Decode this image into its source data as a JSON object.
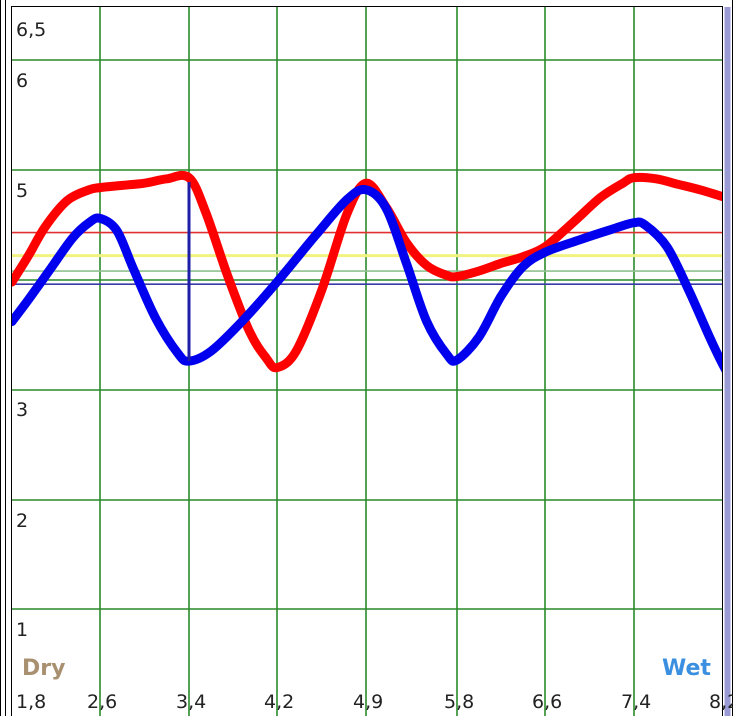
{
  "chart_data": {
    "type": "line",
    "ylim": [
      0.65,
      6.5
    ],
    "xlim": [
      1.8,
      8.4
    ],
    "y_tick_labels": [
      "6,5",
      "6",
      "5",
      "3",
      "2",
      "1"
    ],
    "y_tick_values": [
      6.5,
      6,
      5,
      3,
      2,
      1
    ],
    "x_tick_labels": [
      "1,8",
      "2,6",
      "3,4",
      "4,2",
      "4,9",
      "5,8",
      "6,6",
      "7,4",
      "8,2"
    ],
    "x_tick_values": [
      1.8,
      2.6,
      3.4,
      4.2,
      4.9,
      5.8,
      6.6,
      7.4,
      8.2
    ],
    "grid": true,
    "annotations": {
      "dry_label": "Dry",
      "wet_label": "Wet"
    },
    "reference_lines": [
      {
        "y": 4.43,
        "color": "#e03030"
      },
      {
        "y": 4.22,
        "color": "#f2f280"
      },
      {
        "y": 4.08,
        "color": "#90c090"
      },
      {
        "y": 3.96,
        "color": "#3a3aa8"
      }
    ],
    "marker_line": {
      "x": 8.25,
      "color": "#8f8fd0"
    },
    "vertical_segment": {
      "x": 3.4,
      "y_from": 3.26,
      "y_to": 4.89,
      "color": "#1e1ea8"
    },
    "series": [
      {
        "color": "#ff0000",
        "x": [
          1.8,
          1.95,
          2.1,
          2.3,
          2.5,
          2.6,
          2.8,
          3.0,
          3.2,
          3.4,
          3.55,
          3.75,
          3.95,
          4.1,
          4.2,
          4.35,
          4.55,
          4.75,
          4.9,
          5.1,
          5.3,
          5.5,
          5.7,
          5.8,
          6.0,
          6.2,
          6.4,
          6.6,
          6.85,
          7.1,
          7.3,
          7.4,
          7.6,
          7.8,
          8.0,
          8.2,
          8.4
        ],
        "y": [
          3.98,
          4.22,
          4.48,
          4.72,
          4.82,
          4.84,
          4.86,
          4.88,
          4.92,
          4.93,
          4.62,
          4.04,
          3.53,
          3.29,
          3.2,
          3.35,
          3.9,
          4.6,
          4.88,
          4.66,
          4.34,
          4.13,
          4.04,
          4.03,
          4.08,
          4.15,
          4.21,
          4.3,
          4.52,
          4.75,
          4.88,
          4.93,
          4.92,
          4.87,
          4.82,
          4.76,
          4.7
        ]
      },
      {
        "color": "#0000ee",
        "x": [
          1.8,
          1.95,
          2.15,
          2.35,
          2.5,
          2.6,
          2.75,
          2.9,
          3.1,
          3.3,
          3.4,
          3.6,
          3.9,
          4.2,
          4.5,
          4.75,
          4.9,
          5.1,
          5.3,
          5.5,
          5.7,
          5.8,
          6.0,
          6.2,
          6.4,
          6.6,
          6.9,
          7.2,
          7.4,
          7.5,
          7.7,
          7.9,
          8.1,
          8.25,
          8.4
        ],
        "y": [
          3.62,
          3.82,
          4.1,
          4.38,
          4.52,
          4.56,
          4.45,
          4.1,
          3.65,
          3.33,
          3.26,
          3.35,
          3.64,
          3.98,
          4.4,
          4.73,
          4.82,
          4.65,
          4.15,
          3.62,
          3.32,
          3.27,
          3.48,
          3.85,
          4.12,
          4.25,
          4.36,
          4.46,
          4.52,
          4.5,
          4.3,
          3.9,
          3.45,
          3.15,
          2.95
        ]
      }
    ]
  }
}
